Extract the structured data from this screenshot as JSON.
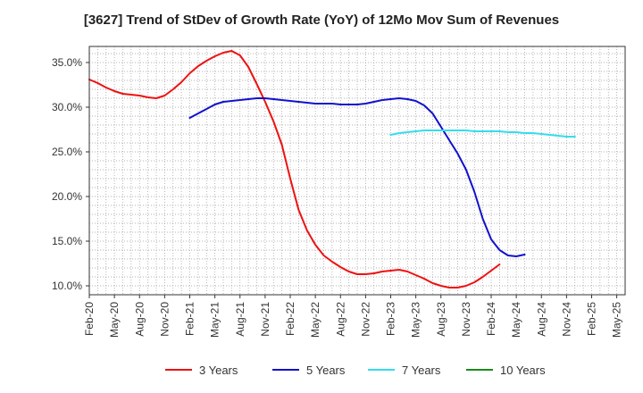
{
  "chart_data": {
    "type": "line",
    "title": "[3627]  Trend of StDev of Growth Rate (YoY) of 12Mo Mov Sum of Revenues",
    "xlabel": "",
    "ylabel": "",
    "ylim": [
      9.0,
      36.8
    ],
    "yticks": [
      10.0,
      15.0,
      20.0,
      25.0,
      30.0,
      35.0
    ],
    "ytick_labels": [
      "10.0%",
      "15.0%",
      "20.0%",
      "25.0%",
      "30.0%",
      "35.0%"
    ],
    "x_start": "Feb-20",
    "x_count": 64,
    "xticks": [
      0,
      3,
      6,
      9,
      12,
      15,
      18,
      21,
      24,
      27,
      30,
      33,
      36,
      39,
      42,
      45,
      48,
      51,
      54,
      57,
      60,
      63
    ],
    "xtick_labels": [
      "Feb-20",
      "May-20",
      "Aug-20",
      "Nov-20",
      "Feb-21",
      "May-21",
      "Aug-21",
      "Nov-21",
      "Feb-22",
      "May-22",
      "Aug-22",
      "Nov-22",
      "Feb-23",
      "May-23",
      "Aug-23",
      "Nov-23",
      "Feb-24",
      "May-24",
      "Aug-24",
      "Nov-24",
      "Feb-25",
      "May-25"
    ],
    "grid": true,
    "legend_position": "bottom",
    "series": [
      {
        "name": "3 Years",
        "color": "#ee1111",
        "start": 0,
        "values": [
          33.1,
          32.7,
          32.2,
          31.8,
          31.5,
          31.4,
          31.3,
          31.1,
          31.0,
          31.3,
          32.0,
          32.8,
          33.8,
          34.6,
          35.2,
          35.7,
          36.1,
          36.3,
          35.8,
          34.5,
          32.6,
          30.6,
          28.4,
          25.8,
          22.0,
          18.5,
          16.2,
          14.6,
          13.4,
          12.7,
          12.1,
          11.6,
          11.3,
          11.3,
          11.4,
          11.6,
          11.7,
          11.8,
          11.6,
          11.2,
          10.8,
          10.3,
          10.0,
          9.8,
          9.8,
          10.0,
          10.4,
          11.0,
          11.7,
          12.4
        ]
      },
      {
        "name": "5 Years",
        "color": "#1111cc",
        "start": 12,
        "values": [
          28.8,
          29.3,
          29.8,
          30.3,
          30.6,
          30.7,
          30.8,
          30.9,
          31.0,
          31.0,
          30.9,
          30.8,
          30.7,
          30.6,
          30.5,
          30.4,
          30.4,
          30.4,
          30.3,
          30.3,
          30.3,
          30.4,
          30.6,
          30.8,
          30.9,
          31.0,
          30.9,
          30.7,
          30.2,
          29.3,
          27.8,
          26.3,
          24.8,
          23.0,
          20.5,
          17.5,
          15.2,
          14.0,
          13.4,
          13.3,
          13.5
        ]
      },
      {
        "name": "7 Years",
        "color": "#33ddee",
        "start": 36,
        "values": [
          26.9,
          27.1,
          27.2,
          27.3,
          27.4,
          27.4,
          27.4,
          27.4,
          27.4,
          27.4,
          27.3,
          27.3,
          27.3,
          27.3,
          27.2,
          27.2,
          27.1,
          27.1,
          27.0,
          26.9,
          26.8,
          26.7,
          26.7
        ]
      },
      {
        "name": "10 Years",
        "color": "#1a8a1a",
        "start": 0,
        "values": []
      }
    ]
  }
}
